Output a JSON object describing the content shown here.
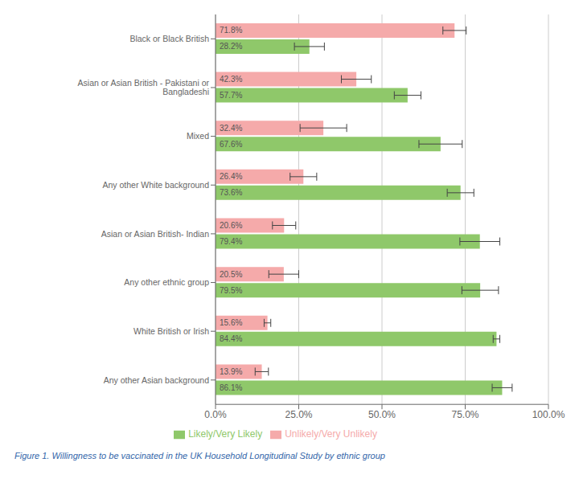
{
  "chart_data": {
    "type": "bar",
    "orientation": "horizontal",
    "caption": "Figure 1. Willingness to be vaccinated in the UK Household Longitudinal Study by ethnic group",
    "categories": [
      "Black or Black British",
      "Asian or Asian British - Pakistani or Bangladeshi",
      "Mixed",
      "Any other White background",
      "Asian or Asian British- Indian",
      "Any other ethnic group",
      "White British or Irish",
      "Any other Asian background"
    ],
    "series": [
      {
        "name": "Unlikely/Very Unlikely",
        "color": "#F5AAAA",
        "values": [
          71.8,
          42.3,
          32.4,
          26.4,
          20.6,
          20.5,
          15.6,
          13.9
        ],
        "errors": [
          3.5,
          4.5,
          7.0,
          4.0,
          3.5,
          4.5,
          1.0,
          2.0
        ],
        "value_labels": [
          "71.8%",
          "42.3%",
          "32.4%",
          "26.4%",
          "20.6%",
          "20.5%",
          "15.6%",
          "13.9%"
        ]
      },
      {
        "name": "Likely/Very Likely",
        "color": "#8FC86A",
        "values": [
          28.2,
          57.7,
          67.6,
          73.6,
          79.4,
          79.5,
          84.4,
          86.1
        ],
        "errors": [
          4.5,
          4.0,
          6.5,
          4.0,
          6.0,
          5.5,
          1.0,
          3.0
        ],
        "value_labels": [
          "28.2%",
          "57.7%",
          "67.6%",
          "73.6%",
          "79.4%",
          "79.5%",
          "84.4%",
          "86.1%"
        ]
      }
    ],
    "xlim": [
      0.0,
      100.0
    ],
    "xticks": [
      {
        "value": 0.0,
        "label": "0.0%"
      },
      {
        "value": 25.0,
        "label": "25.0%"
      },
      {
        "value": 50.0,
        "label": "50.0%"
      },
      {
        "value": 75.0,
        "label": "75.0%"
      },
      {
        "value": 100.0,
        "label": "100.0%"
      }
    ],
    "grid": true,
    "legend": "bottom",
    "data_labels": true
  }
}
